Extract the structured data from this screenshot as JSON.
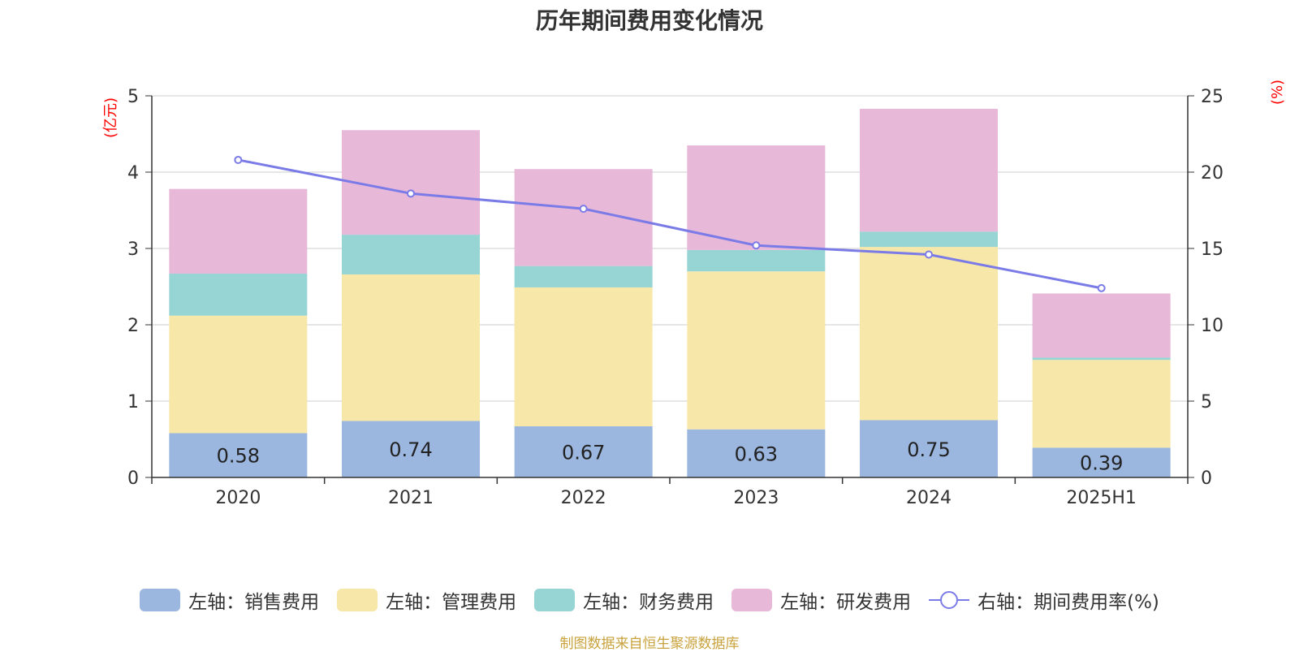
{
  "title": "历年期间费用变化情况",
  "source_note": "制图数据来自恒生聚源数据库",
  "colors": {
    "sales": "#9bb7e0",
    "admin": "#f7e7a8",
    "finance": "#97d4d4",
    "rd": "#e7b8d8",
    "rate": "#7b7be8",
    "axis": "#333333",
    "grid": "#cccccc"
  },
  "chart_data": {
    "type": "bar",
    "categories": [
      "2020",
      "2021",
      "2022",
      "2023",
      "2024",
      "2025H1"
    ],
    "left_axis": {
      "unit": "(亿元)",
      "ylim": [
        0,
        5
      ],
      "ticks": [
        "0",
        "1",
        "2",
        "3",
        "4",
        "5"
      ]
    },
    "right_axis": {
      "unit": "(%)",
      "ylim": [
        0,
        25
      ],
      "ticks": [
        "0",
        "5",
        "10",
        "15",
        "20",
        "25"
      ]
    },
    "stacked_series": [
      {
        "key": "sales",
        "name": "左轴：销售费用",
        "values": [
          0.58,
          0.74,
          0.67,
          0.63,
          0.75,
          0.39
        ],
        "labels": [
          "0.58",
          "0.74",
          "0.67",
          "0.63",
          "0.75",
          "0.39"
        ]
      },
      {
        "key": "admin",
        "name": "左轴：管理费用",
        "values": [
          1.54,
          1.92,
          1.82,
          2.07,
          2.27,
          1.15
        ]
      },
      {
        "key": "finance",
        "name": "左轴：财务费用",
        "values": [
          0.55,
          0.52,
          0.28,
          0.28,
          0.2,
          0.03
        ]
      },
      {
        "key": "rd",
        "name": "左轴：研发费用",
        "values": [
          1.11,
          1.37,
          1.27,
          1.37,
          1.61,
          0.84
        ]
      }
    ],
    "line_series": {
      "key": "rate",
      "name": "右轴：期间费用率(%)",
      "values": [
        20.8,
        18.6,
        17.6,
        15.2,
        14.6,
        12.4
      ]
    },
    "grid": true,
    "legend_position": "bottom"
  }
}
